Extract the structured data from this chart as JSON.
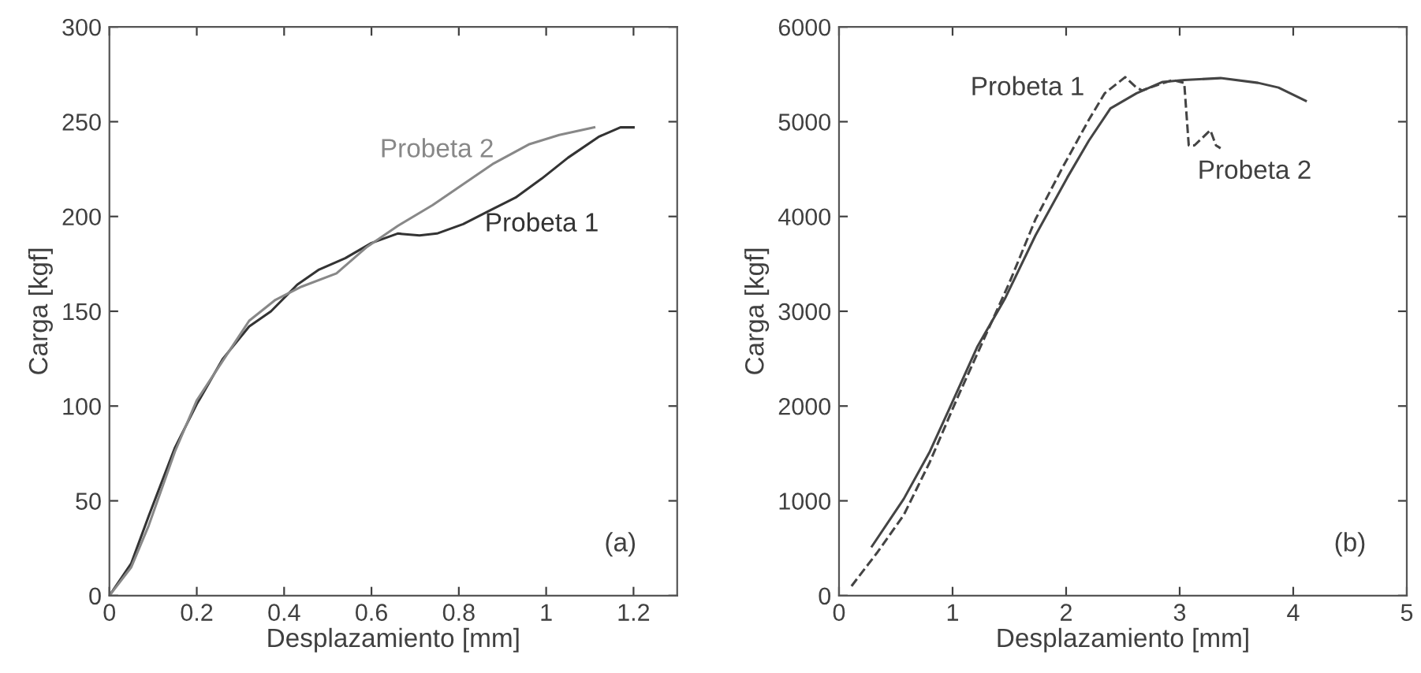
{
  "chart_data": [
    {
      "type": "line",
      "xlabel": "Desplazamiento [mm]",
      "ylabel": "Carga [kgf]",
      "xlim": [
        0,
        1.3
      ],
      "ylim": [
        0,
        300
      ],
      "xticks": [
        0,
        0.2,
        0.4,
        0.6,
        0.8,
        1,
        1.2
      ],
      "yticks": [
        0,
        50,
        100,
        150,
        200,
        250,
        300
      ],
      "grid": false,
      "legend": false,
      "series": [
        {
          "name": "Probeta 1",
          "color": "#333333",
          "line_style": "solid",
          "x": [
            0,
            0.05,
            0.09,
            0.15,
            0.2,
            0.26,
            0.32,
            0.37,
            0.43,
            0.48,
            0.54,
            0.6,
            0.66,
            0.71,
            0.75,
            0.81,
            0.87,
            0.93,
            0.99,
            1.05,
            1.12,
            1.17,
            1.2
          ],
          "values": [
            0,
            17,
            42,
            78,
            101,
            125,
            142,
            150,
            164,
            172,
            178,
            186,
            191,
            190,
            191,
            196,
            203,
            210,
            220,
            231,
            242,
            247,
            247
          ]
        },
        {
          "name": "Probeta 2",
          "color": "#888888",
          "line_style": "solid",
          "x": [
            0,
            0.05,
            0.09,
            0.15,
            0.2,
            0.28,
            0.32,
            0.38,
            0.44,
            0.52,
            0.59,
            0.66,
            0.74,
            0.81,
            0.88,
            0.96,
            1.03,
            1.11
          ],
          "values": [
            0,
            15,
            37,
            76,
            103,
            131,
            145,
            156,
            163,
            170,
            184,
            195,
            206,
            217,
            228,
            238,
            243,
            247
          ]
        }
      ],
      "annotations": [
        "(a)"
      ]
    },
    {
      "type": "line",
      "xlabel": "Desplazamiento [mm]",
      "ylabel": "Carga [kgf]",
      "xlim": [
        0,
        5
      ],
      "ylim": [
        0,
        6000
      ],
      "xticks": [
        0,
        1,
        2,
        3,
        4,
        5
      ],
      "yticks": [
        0,
        1000,
        2000,
        3000,
        4000,
        5000,
        6000
      ],
      "grid": false,
      "legend": false,
      "series": [
        {
          "color": "#444444",
          "line_style": "dashed",
          "x": [
            0.11,
            0.34,
            0.57,
            0.8,
            1.04,
            1.27,
            1.5,
            1.73,
            1.97,
            2.2,
            2.34,
            2.52,
            2.62,
            2.67,
            2.81,
            2.94,
            3.04,
            3.08,
            3.13,
            3.27,
            3.32,
            3.36
          ],
          "values": [
            100,
            460,
            850,
            1410,
            2080,
            2690,
            3300,
            3970,
            4520,
            5020,
            5300,
            5470,
            5360,
            5330,
            5390,
            5440,
            5410,
            4750,
            4750,
            4910,
            4750,
            4720
          ]
        },
        {
          "color": "#444444",
          "line_style": "solid",
          "x": [
            0.29,
            0.57,
            0.8,
            0.99,
            1.22,
            1.46,
            1.73,
            2.01,
            2.2,
            2.39,
            2.62,
            2.85,
            3.04,
            3.36,
            3.69,
            3.87,
            4.11
          ],
          "values": [
            520,
            1020,
            1520,
            2020,
            2630,
            3130,
            3800,
            4410,
            4800,
            5140,
            5300,
            5420,
            5440,
            5460,
            5410,
            5360,
            5220
          ]
        }
      ],
      "annotations": [
        "Probeta 1",
        "Probeta 2",
        "(b)"
      ]
    }
  ]
}
